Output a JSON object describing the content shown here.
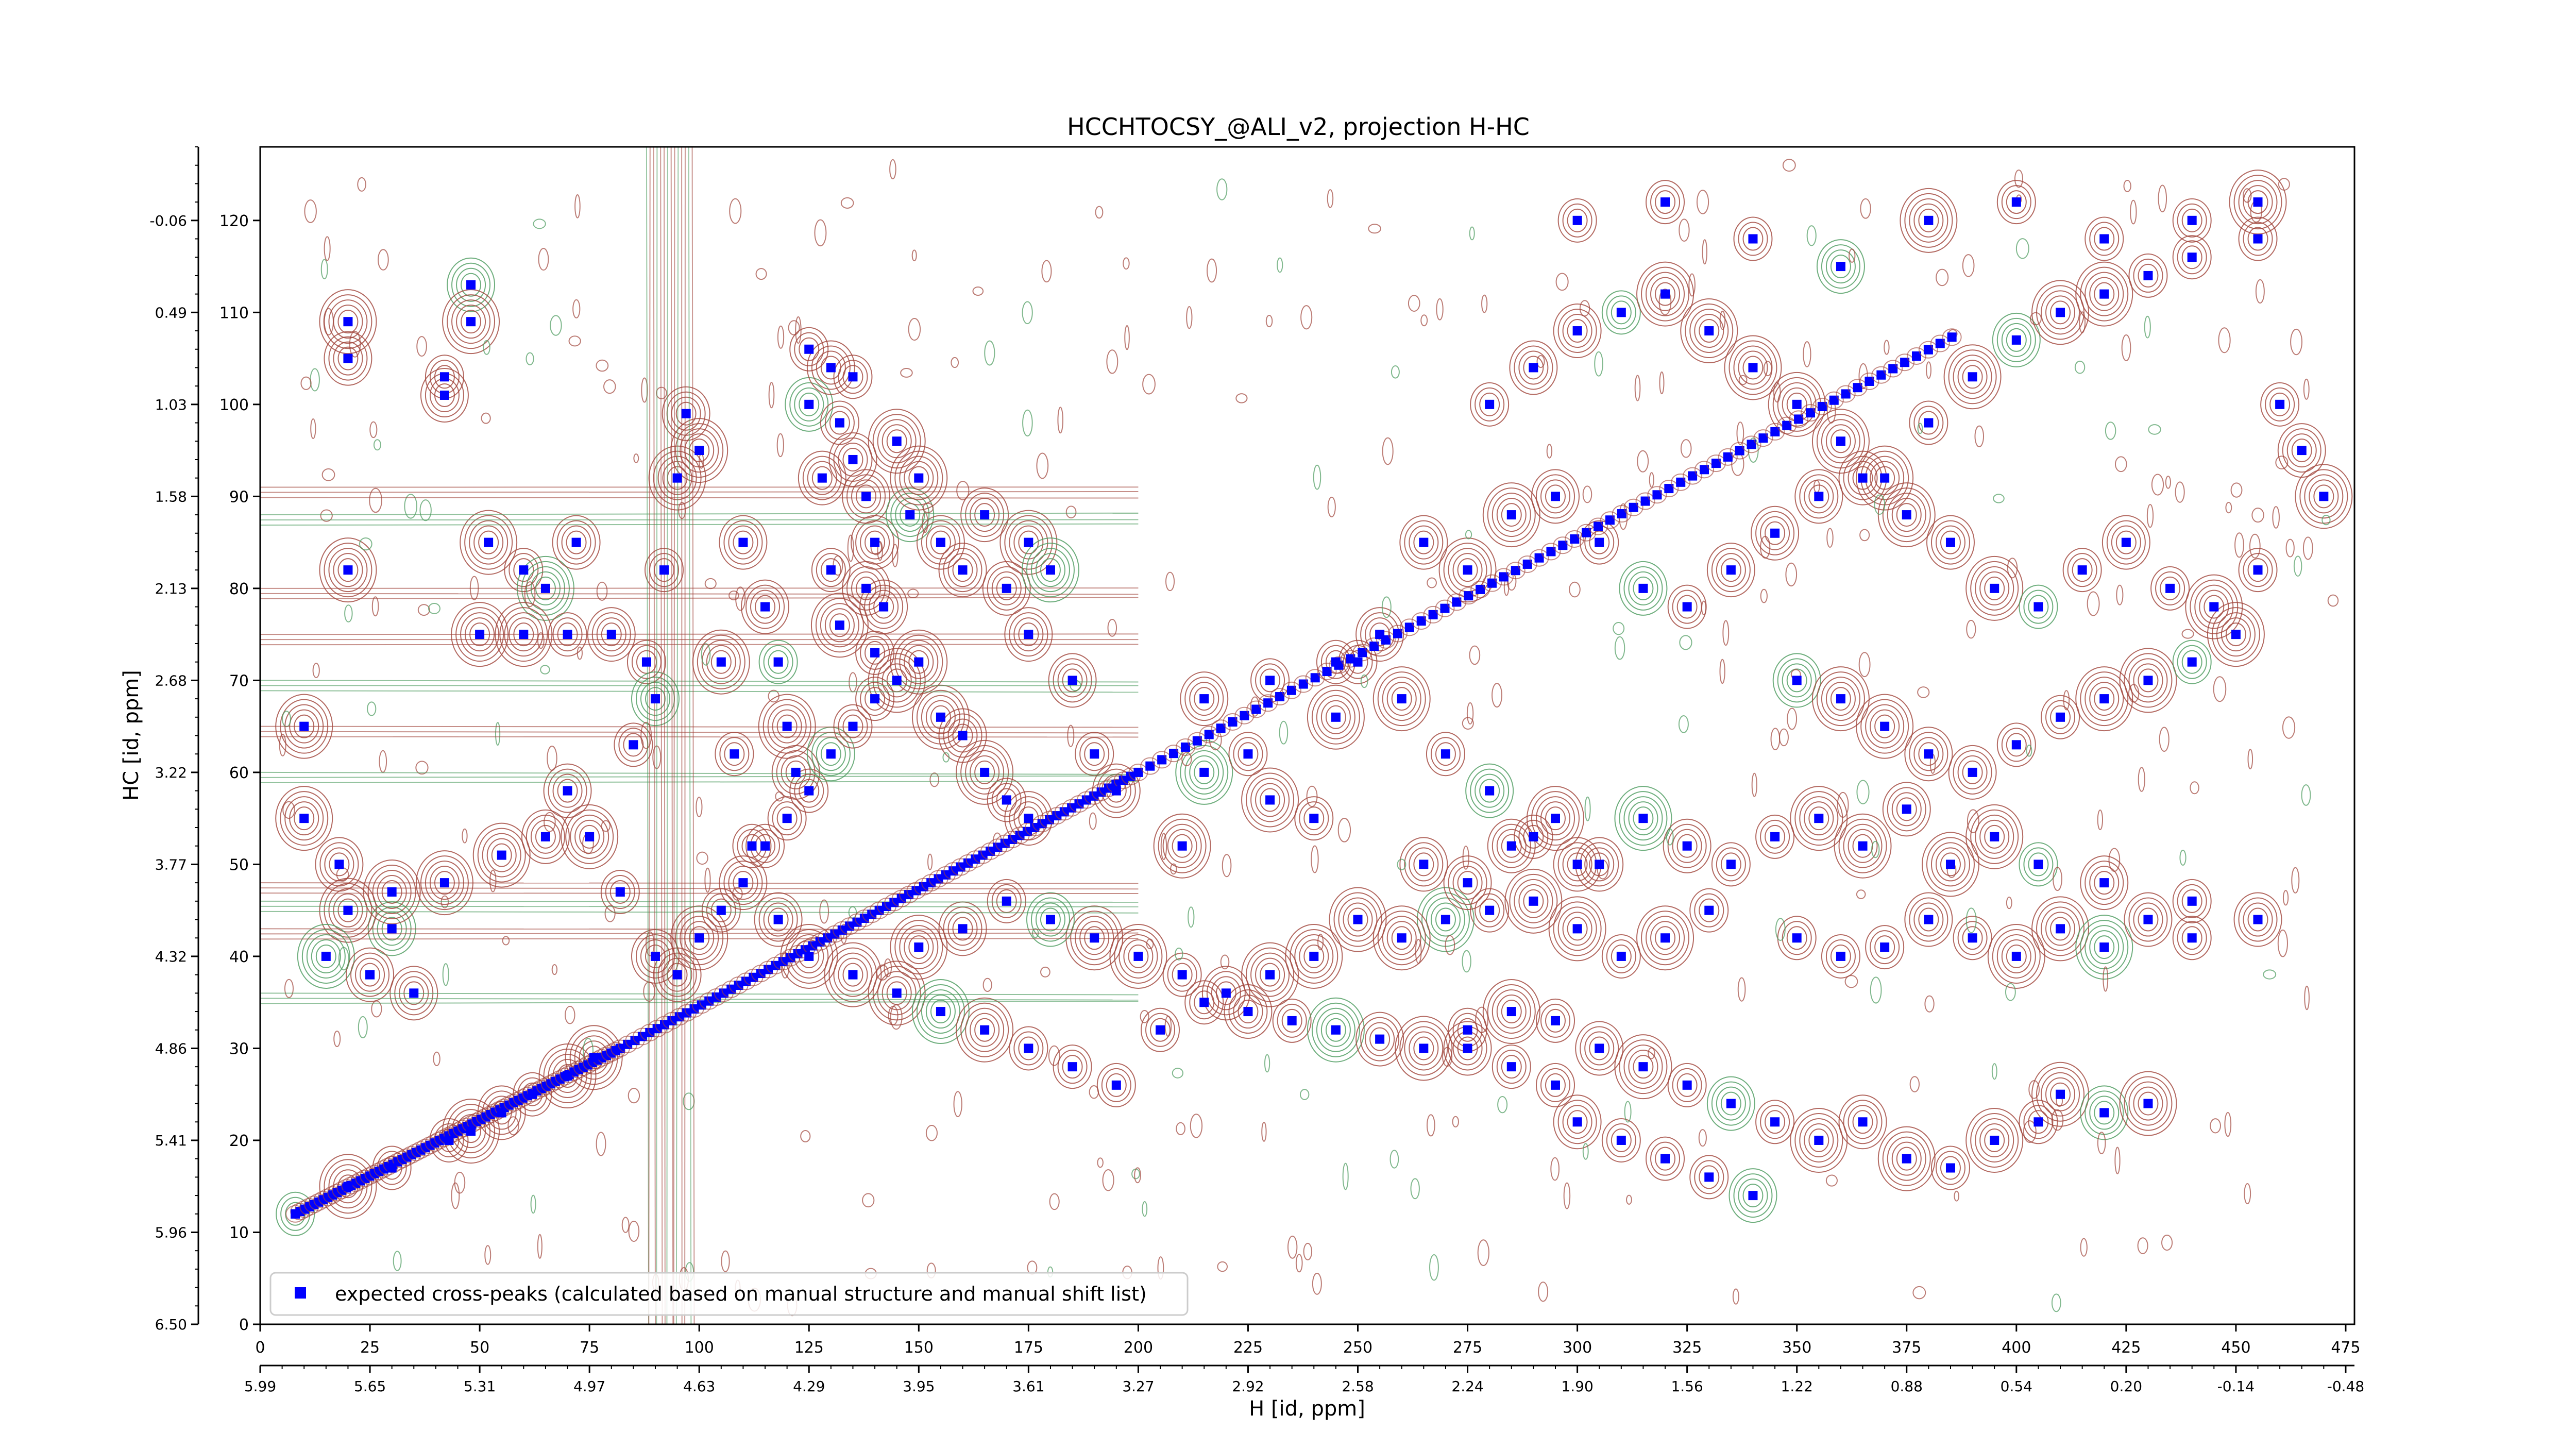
{
  "chart_data": {
    "type": "scatter",
    "title": "HCCHTOCSY_@ALI_v2, projection H-HC",
    "xlabel": "H [id, ppm]",
    "ylabel": "HC [id, ppm]",
    "xlim": [
      0,
      477
    ],
    "ylim": [
      0,
      128
    ],
    "x_index_ticks": [
      0,
      25,
      50,
      75,
      100,
      125,
      150,
      175,
      200,
      225,
      250,
      275,
      300,
      325,
      350,
      375,
      400,
      425,
      450,
      475
    ],
    "x_ppm_ticks": [
      "5.99",
      "5.65",
      "5.31",
      "4.97",
      "4.63",
      "4.29",
      "3.95",
      "3.61",
      "3.27",
      "2.92",
      "2.58",
      "2.24",
      "1.90",
      "1.56",
      "1.22",
      "0.88",
      "0.54",
      "0.20",
      "-0.14",
      "-0.48"
    ],
    "y_index_ticks": [
      0,
      10,
      20,
      30,
      40,
      50,
      60,
      70,
      80,
      90,
      100,
      110,
      120
    ],
    "y_ppm_ticks": [
      "6.50",
      "5.96",
      "5.41",
      "4.86",
      "4.32",
      "3.77",
      "3.22",
      "2.68",
      "2.13",
      "1.58",
      "1.03",
      "0.49",
      "-0.06"
    ],
    "grid": false,
    "legend": {
      "location": "bottom-left",
      "entries": [
        "expected cross-peaks (calculated based on manual structure and manual shift list)"
      ]
    },
    "colors": {
      "marker": "#0000ff",
      "contour_positive": "#a0443a",
      "contour_negative": "#4a9a5c"
    },
    "diagonal_ref": {
      "x": [
        8,
        82,
        200,
        388
      ],
      "y": [
        12,
        30,
        60,
        108
      ]
    },
    "series": [
      {
        "name": "expected cross-peaks (calculated based on manual structure and manual shift list)",
        "points": [
          [
            8,
            12
          ],
          [
            20,
            15
          ],
          [
            30,
            17
          ],
          [
            43,
            20
          ],
          [
            48,
            21
          ],
          [
            55,
            23
          ],
          [
            62,
            25
          ],
          [
            70,
            27
          ],
          [
            76,
            29
          ],
          [
            48,
            113
          ],
          [
            20,
            109
          ],
          [
            20,
            105
          ],
          [
            48,
            109
          ],
          [
            42,
            103
          ],
          [
            42,
            101
          ],
          [
            20,
            82
          ],
          [
            52,
            85
          ],
          [
            60,
            82
          ],
          [
            65,
            80
          ],
          [
            72,
            85
          ],
          [
            50,
            75
          ],
          [
            60,
            75
          ],
          [
            70,
            75
          ],
          [
            80,
            75
          ],
          [
            10,
            65
          ],
          [
            10,
            55
          ],
          [
            18,
            50
          ],
          [
            30,
            43
          ],
          [
            42,
            48
          ],
          [
            55,
            51
          ],
          [
            65,
            53
          ],
          [
            70,
            58
          ],
          [
            75,
            53
          ],
          [
            82,
            47
          ],
          [
            85,
            63
          ],
          [
            88,
            72
          ],
          [
            90,
            68
          ],
          [
            92,
            82
          ],
          [
            95,
            92
          ],
          [
            97,
            99
          ],
          [
            100,
            95
          ],
          [
            105,
            72
          ],
          [
            108,
            62
          ],
          [
            112,
            52
          ],
          [
            118,
            44
          ],
          [
            125,
            100
          ],
          [
            128,
            92
          ],
          [
            130,
            82
          ],
          [
            132,
            76
          ],
          [
            135,
            103
          ],
          [
            138,
            90
          ],
          [
            140,
            85
          ],
          [
            142,
            78
          ],
          [
            145,
            96
          ],
          [
            148,
            88
          ],
          [
            125,
            106
          ],
          [
            130,
            104
          ],
          [
            132,
            98
          ],
          [
            135,
            94
          ],
          [
            138,
            80
          ],
          [
            140,
            73
          ],
          [
            110,
            85
          ],
          [
            115,
            78
          ],
          [
            118,
            72
          ],
          [
            120,
            65
          ],
          [
            122,
            60
          ],
          [
            150,
            92
          ],
          [
            155,
            85
          ],
          [
            160,
            82
          ],
          [
            165,
            88
          ],
          [
            170,
            80
          ],
          [
            175,
            85
          ],
          [
            180,
            82
          ],
          [
            175,
            75
          ],
          [
            165,
            60
          ],
          [
            170,
            57
          ],
          [
            175,
            55
          ],
          [
            185,
            70
          ],
          [
            190,
            62
          ],
          [
            195,
            58
          ],
          [
            210,
            52
          ],
          [
            215,
            60
          ],
          [
            225,
            62
          ],
          [
            230,
            57
          ],
          [
            240,
            55
          ],
          [
            215,
            68
          ],
          [
            230,
            70
          ],
          [
            245,
            72
          ],
          [
            260,
            68
          ],
          [
            270,
            62
          ],
          [
            280,
            58
          ],
          [
            290,
            53
          ],
          [
            300,
            50
          ],
          [
            255,
            75
          ],
          [
            250,
            72
          ],
          [
            245,
            66
          ],
          [
            125,
            40
          ],
          [
            135,
            38
          ],
          [
            145,
            36
          ],
          [
            155,
            34
          ],
          [
            165,
            32
          ],
          [
            175,
            30
          ],
          [
            185,
            28
          ],
          [
            195,
            26
          ],
          [
            205,
            32
          ],
          [
            215,
            35
          ],
          [
            225,
            34
          ],
          [
            235,
            33
          ],
          [
            245,
            32
          ],
          [
            255,
            31
          ],
          [
            265,
            30
          ],
          [
            275,
            32
          ],
          [
            285,
            34
          ],
          [
            295,
            33
          ],
          [
            305,
            30
          ],
          [
            315,
            28
          ],
          [
            325,
            26
          ],
          [
            335,
            24
          ],
          [
            345,
            22
          ],
          [
            355,
            20
          ],
          [
            365,
            22
          ],
          [
            375,
            18
          ],
          [
            385,
            17
          ],
          [
            395,
            20
          ],
          [
            405,
            22
          ],
          [
            410,
            25
          ],
          [
            420,
            23
          ],
          [
            430,
            24
          ],
          [
            350,
            42
          ],
          [
            360,
            40
          ],
          [
            370,
            41
          ],
          [
            380,
            44
          ],
          [
            390,
            42
          ],
          [
            400,
            40
          ],
          [
            410,
            43
          ],
          [
            420,
            41
          ],
          [
            430,
            44
          ],
          [
            440,
            42
          ],
          [
            330,
            45
          ],
          [
            320,
            42
          ],
          [
            310,
            40
          ],
          [
            300,
            43
          ],
          [
            290,
            46
          ],
          [
            280,
            45
          ],
          [
            270,
            44
          ],
          [
            260,
            42
          ],
          [
            250,
            44
          ],
          [
            240,
            40
          ],
          [
            230,
            38
          ],
          [
            220,
            36
          ],
          [
            210,
            38
          ],
          [
            200,
            40
          ],
          [
            190,
            42
          ],
          [
            180,
            44
          ],
          [
            170,
            46
          ],
          [
            160,
            43
          ],
          [
            150,
            41
          ],
          [
            265,
            50
          ],
          [
            275,
            48
          ],
          [
            285,
            52
          ],
          [
            295,
            55
          ],
          [
            305,
            50
          ],
          [
            315,
            55
          ],
          [
            325,
            52
          ],
          [
            335,
            50
          ],
          [
            345,
            53
          ],
          [
            355,
            55
          ],
          [
            365,
            52
          ],
          [
            375,
            56
          ],
          [
            385,
            50
          ],
          [
            395,
            53
          ],
          [
            405,
            50
          ],
          [
            420,
            48
          ],
          [
            440,
            46
          ],
          [
            455,
            44
          ],
          [
            265,
            85
          ],
          [
            275,
            82
          ],
          [
            285,
            88
          ],
          [
            295,
            90
          ],
          [
            305,
            85
          ],
          [
            315,
            80
          ],
          [
            325,
            78
          ],
          [
            335,
            82
          ],
          [
            345,
            86
          ],
          [
            355,
            90
          ],
          [
            365,
            92
          ],
          [
            375,
            88
          ],
          [
            385,
            85
          ],
          [
            395,
            80
          ],
          [
            405,
            78
          ],
          [
            415,
            82
          ],
          [
            425,
            85
          ],
          [
            435,
            80
          ],
          [
            445,
            78
          ],
          [
            455,
            82
          ],
          [
            280,
            100
          ],
          [
            290,
            104
          ],
          [
            300,
            108
          ],
          [
            310,
            110
          ],
          [
            320,
            112
          ],
          [
            330,
            108
          ],
          [
            340,
            104
          ],
          [
            350,
            100
          ],
          [
            360,
            96
          ],
          [
            370,
            92
          ],
          [
            380,
            98
          ],
          [
            390,
            103
          ],
          [
            400,
            107
          ],
          [
            410,
            110
          ],
          [
            420,
            112
          ],
          [
            430,
            114
          ],
          [
            440,
            116
          ],
          [
            455,
            118
          ],
          [
            300,
            120
          ],
          [
            320,
            122
          ],
          [
            340,
            118
          ],
          [
            360,
            115
          ],
          [
            380,
            120
          ],
          [
            400,
            122
          ],
          [
            420,
            118
          ],
          [
            440,
            120
          ],
          [
            455,
            122
          ],
          [
            460,
            100
          ],
          [
            465,
            95
          ],
          [
            470,
            90
          ],
          [
            350,
            70
          ],
          [
            360,
            68
          ],
          [
            370,
            65
          ],
          [
            380,
            62
          ],
          [
            390,
            60
          ],
          [
            400,
            63
          ],
          [
            410,
            66
          ],
          [
            420,
            68
          ],
          [
            430,
            70
          ],
          [
            440,
            72
          ],
          [
            450,
            75
          ],
          [
            275,
            30
          ],
          [
            285,
            28
          ],
          [
            295,
            26
          ],
          [
            300,
            22
          ],
          [
            310,
            20
          ],
          [
            320,
            18
          ],
          [
            330,
            16
          ],
          [
            340,
            14
          ],
          [
            90,
            40
          ],
          [
            95,
            38
          ],
          [
            100,
            42
          ],
          [
            105,
            45
          ],
          [
            110,
            48
          ],
          [
            115,
            52
          ],
          [
            120,
            55
          ],
          [
            125,
            58
          ],
          [
            130,
            62
          ],
          [
            135,
            65
          ],
          [
            140,
            68
          ],
          [
            145,
            70
          ],
          [
            150,
            72
          ],
          [
            155,
            66
          ],
          [
            160,
            64
          ],
          [
            20,
            45
          ],
          [
            30,
            47
          ],
          [
            15,
            40
          ],
          [
            25,
            38
          ],
          [
            35,
            36
          ]
        ]
      }
    ]
  }
}
